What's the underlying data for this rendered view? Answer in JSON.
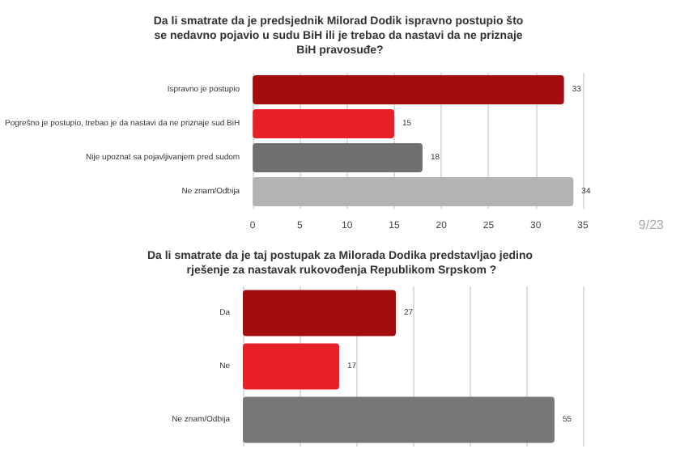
{
  "chart_data": [
    {
      "type": "bar",
      "orientation": "horizontal",
      "title": "Da li smatrate da je predsjednik Milorad Dodik ispravno postupio što se nedavno pojavio u sudu BiH ili je trebao da nastavi da ne priznaje BiH pravosuđe?",
      "categories": [
        "Ispravno je postupio",
        "Pogrešno je postupio, trebao je da nastavi da ne priznaje sud BiH",
        "Nije upoznat sa pojavljivanjem pred sudom",
        "Ne znam/Odbija"
      ],
      "values": [
        33,
        15,
        18,
        34
      ],
      "colors": [
        "#a30d0d",
        "#e8202a",
        "#707070",
        "#b3b3b3"
      ],
      "xlim": [
        0,
        35
      ],
      "xticks": [
        0,
        5,
        10,
        15,
        20,
        25,
        30,
        35
      ],
      "grid": "x",
      "data_labels": true,
      "annotations": [
        "9/23"
      ]
    },
    {
      "type": "bar",
      "orientation": "horizontal",
      "title": "Da li smatrate da je taj postupak za Milorada Dodika predstavljao jedino rješenje za nastavak rukovođenja Republikom Srpskom ?",
      "categories": [
        "Da",
        "Ne",
        "Ne znam/Odbija"
      ],
      "values": [
        27,
        17,
        55
      ],
      "colors": [
        "#a30d0d",
        "#e8202a",
        "#777777"
      ],
      "grid": "x",
      "data_labels": true,
      "tick_labels": "y"
    }
  ]
}
